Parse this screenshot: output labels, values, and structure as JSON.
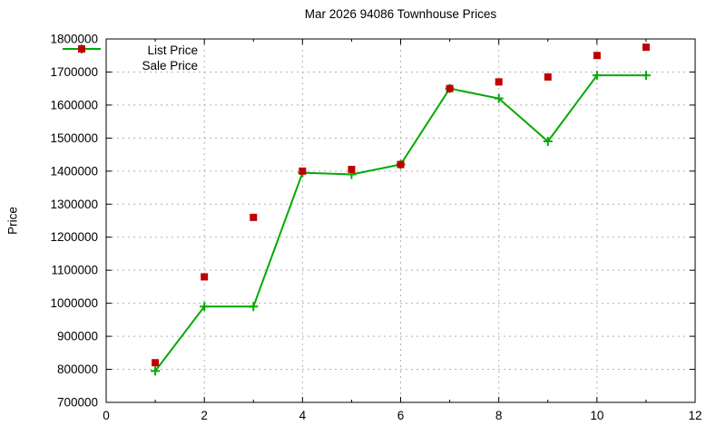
{
  "chart_data": {
    "type": "line",
    "title": "Mar 2026 94086 Townhouse Prices",
    "xlabel": "",
    "ylabel": "Price",
    "xlim": [
      0,
      12
    ],
    "ylim": [
      700000,
      1800000
    ],
    "xticks": [
      0,
      2,
      4,
      6,
      8,
      10,
      12
    ],
    "x_minor_ticks": [
      1,
      3,
      5,
      7,
      9,
      11
    ],
    "yticks": [
      700000,
      800000,
      900000,
      1000000,
      1100000,
      1200000,
      1300000,
      1400000,
      1500000,
      1600000,
      1700000,
      1800000
    ],
    "grid": true,
    "legend_position": "top-left",
    "x": [
      1,
      2,
      3,
      4,
      5,
      6,
      7,
      8,
      9,
      10,
      11
    ],
    "series": [
      {
        "name": "List Price",
        "type": "line-with-markers",
        "marker": "plus",
        "color": "#00AA00",
        "values": [
          795000,
          990000,
          990000,
          1395000,
          1390000,
          1420000,
          1650000,
          1620000,
          1490000,
          1690000,
          1690000
        ]
      },
      {
        "name": "Sale Price",
        "type": "scatter",
        "marker": "square",
        "color": "#C00000",
        "values": [
          820000,
          1080000,
          1260000,
          1400000,
          1405000,
          1420000,
          1650000,
          1670000,
          1685000,
          1750000,
          1775000
        ]
      }
    ],
    "colors": {
      "axis": "#000000",
      "grid": "#b0b0b0",
      "background": "#ffffff",
      "text": "#000000"
    }
  }
}
